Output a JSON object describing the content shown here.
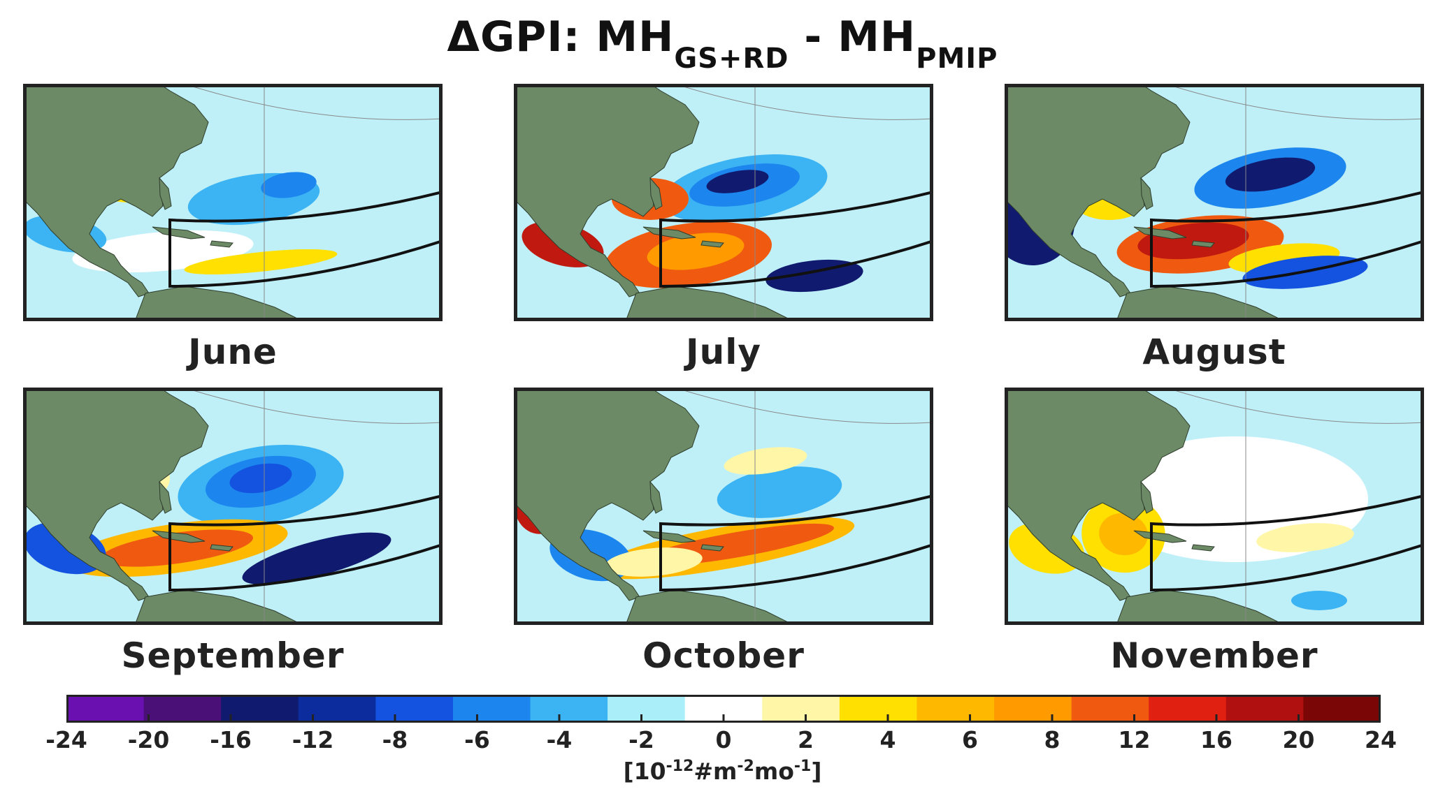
{
  "title": {
    "prefix": "ΔGPI: MH",
    "sub1": "GS+RD",
    "middle": " - MH",
    "sub2": "PMIP"
  },
  "panels": [
    {
      "month": "June"
    },
    {
      "month": "July"
    },
    {
      "month": "August"
    },
    {
      "month": "September"
    },
    {
      "month": "October"
    },
    {
      "month": "November"
    }
  ],
  "colorbar": {
    "ticks": [
      "-24",
      "-20",
      "-16",
      "-12",
      "-8",
      "-6",
      "-4",
      "-2",
      "0",
      "2",
      "4",
      "6",
      "8",
      "12",
      "16",
      "20",
      "24"
    ],
    "colors": [
      "#6a0fb0",
      "#4a1078",
      "#101a6e",
      "#0c2c9e",
      "#1452e0",
      "#1c86ee",
      "#3cb4f4",
      "#aaeefa",
      "#ffffff",
      "#fff6a8",
      "#ffe000",
      "#ffb800",
      "#ff9a00",
      "#f05a10",
      "#e02010",
      "#b01010",
      "#7a0606"
    ],
    "units_base": "[10",
    "units_exp1": "-12",
    "units_mid1": "#m",
    "units_exp2": "-2",
    "units_mid2": "mo",
    "units_exp3": "-1",
    "units_end": "]"
  },
  "colors": {
    "land": "#6b8a65",
    "ocean_light": "#bff0f8",
    "frame": "#222222"
  }
}
